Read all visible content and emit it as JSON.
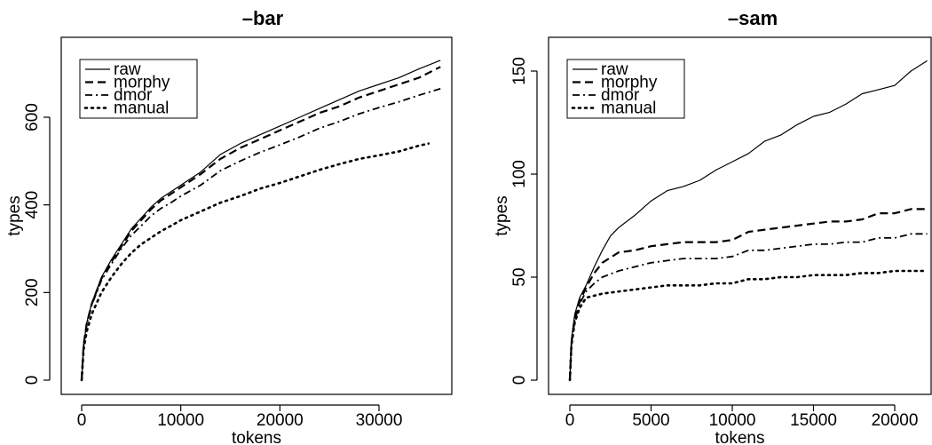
{
  "chart_data": [
    {
      "type": "line",
      "title": "–bar",
      "xlabel": "tokens",
      "ylabel": "types",
      "xlim": [
        0,
        36000
      ],
      "ylim": [
        0,
        720
      ],
      "xticks": [
        0,
        10000,
        20000,
        30000
      ],
      "xtick_labels": [
        "0",
        "10000",
        "20000",
        "30000"
      ],
      "yticks": [
        0,
        200,
        400,
        600
      ],
      "ytick_labels": [
        "0",
        "200",
        "400",
        "600"
      ],
      "grid": false,
      "legend_position": "top-left",
      "series": [
        {
          "name": "raw",
          "style": "solid",
          "x": [
            0,
            200,
            500,
            1000,
            2000,
            3000,
            4000,
            5000,
            6000,
            7000,
            8000,
            9000,
            10000,
            12000,
            14000,
            16000,
            18000,
            20000,
            22000,
            24000,
            26000,
            28000,
            30000,
            32000,
            34000,
            36200
          ],
          "y": [
            0,
            80,
            130,
            175,
            235,
            275,
            310,
            345,
            370,
            395,
            415,
            430,
            445,
            475,
            515,
            540,
            560,
            580,
            600,
            620,
            640,
            660,
            675,
            690,
            710,
            730
          ]
        },
        {
          "name": "morphy",
          "style": "dashed",
          "x": [
            0,
            200,
            500,
            1000,
            2000,
            3000,
            4000,
            5000,
            6000,
            7000,
            8000,
            9000,
            10000,
            12000,
            14000,
            16000,
            18000,
            20000,
            22000,
            24000,
            26000,
            28000,
            30000,
            32000,
            34000,
            36200
          ],
          "y": [
            0,
            80,
            128,
            173,
            232,
            270,
            305,
            340,
            365,
            390,
            410,
            425,
            440,
            470,
            505,
            530,
            550,
            570,
            590,
            610,
            625,
            645,
            660,
            675,
            690,
            715
          ]
        },
        {
          "name": "dmor",
          "style": "dashdot",
          "x": [
            0,
            200,
            500,
            1000,
            2000,
            3000,
            4000,
            5000,
            6000,
            7000,
            8000,
            9000,
            10000,
            12000,
            14000,
            16000,
            18000,
            20000,
            22000,
            24000,
            26000,
            28000,
            30000,
            32000,
            34000,
            36200
          ],
          "y": [
            0,
            78,
            125,
            170,
            228,
            265,
            300,
            330,
            352,
            375,
            392,
            405,
            420,
            445,
            478,
            500,
            520,
            537,
            555,
            575,
            590,
            608,
            622,
            635,
            650,
            665
          ]
        },
        {
          "name": "manual",
          "style": "dotted",
          "x": [
            0,
            200,
            500,
            1000,
            2000,
            3000,
            4000,
            5000,
            6000,
            7000,
            8000,
            9000,
            10000,
            12000,
            14000,
            16000,
            18000,
            20000,
            22000,
            24000,
            26000,
            28000,
            30000,
            32000,
            34000,
            35000
          ],
          "y": [
            0,
            70,
            110,
            150,
            200,
            235,
            265,
            290,
            310,
            325,
            340,
            352,
            365,
            385,
            405,
            420,
            437,
            450,
            465,
            480,
            493,
            505,
            513,
            522,
            535,
            540
          ]
        }
      ]
    },
    {
      "type": "line",
      "title": "–sam",
      "xlabel": "tokens",
      "ylabel": "types",
      "xlim": [
        0,
        22200
      ],
      "ylim": [
        0,
        155
      ],
      "xticks": [
        0,
        5000,
        10000,
        15000,
        20000
      ],
      "xtick_labels": [
        "0",
        "5000",
        "10000",
        "15000",
        "20000"
      ],
      "yticks": [
        0,
        50,
        100,
        150
      ],
      "ytick_labels": [
        "0",
        "50",
        "100",
        "150"
      ],
      "grid": false,
      "legend_position": "top-left",
      "series": [
        {
          "name": "raw",
          "style": "solid",
          "x": [
            0,
            100,
            300,
            600,
            1000,
            1500,
            2000,
            2500,
            3000,
            4000,
            5000,
            6000,
            7000,
            8000,
            9000,
            10000,
            11000,
            12000,
            13000,
            14000,
            15000,
            16000,
            17000,
            18000,
            19000,
            20000,
            21000,
            22000
          ],
          "y": [
            0,
            20,
            32,
            40,
            46,
            55,
            63,
            70,
            74,
            80,
            87,
            92,
            94,
            97,
            102,
            106,
            110,
            116,
            119,
            124,
            128,
            130,
            134,
            139,
            141,
            143,
            150,
            155
          ]
        },
        {
          "name": "morphy",
          "style": "dashed",
          "x": [
            0,
            100,
            300,
            600,
            1000,
            1500,
            2000,
            3000,
            4000,
            5000,
            6000,
            7000,
            8000,
            9000,
            10000,
            11000,
            12000,
            13000,
            14000,
            15000,
            16000,
            17000,
            18000,
            19000,
            20000,
            21000,
            22000
          ],
          "y": [
            0,
            18,
            30,
            38,
            45,
            52,
            57,
            62,
            63,
            65,
            66,
            67,
            67,
            67,
            68,
            72,
            73,
            74,
            75,
            76,
            77,
            77,
            78,
            81,
            81,
            83,
            83
          ]
        },
        {
          "name": "dmor",
          "style": "dashdot",
          "x": [
            0,
            100,
            300,
            600,
            1000,
            1500,
            2000,
            3000,
            4000,
            5000,
            6000,
            7000,
            8000,
            9000,
            10000,
            11000,
            12000,
            13000,
            14000,
            15000,
            16000,
            17000,
            18000,
            19000,
            20000,
            21000,
            22000
          ],
          "y": [
            0,
            18,
            29,
            37,
            43,
            47,
            50,
            53,
            55,
            57,
            58,
            59,
            59,
            59,
            60,
            63,
            63,
            64,
            65,
            66,
            66,
            67,
            67,
            69,
            69,
            71,
            71
          ]
        },
        {
          "name": "manual",
          "style": "dotted",
          "x": [
            0,
            100,
            300,
            600,
            1000,
            1500,
            2000,
            3000,
            4000,
            5000,
            6000,
            7000,
            8000,
            9000,
            10000,
            11000,
            12000,
            13000,
            14000,
            15000,
            16000,
            17000,
            18000,
            19000,
            20000,
            21000,
            22000
          ],
          "y": [
            0,
            17,
            28,
            35,
            40,
            41,
            42,
            43,
            44,
            45,
            46,
            46,
            46,
            47,
            47,
            49,
            49,
            50,
            50,
            51,
            51,
            51,
            52,
            52,
            53,
            53,
            53
          ]
        }
      ]
    }
  ]
}
